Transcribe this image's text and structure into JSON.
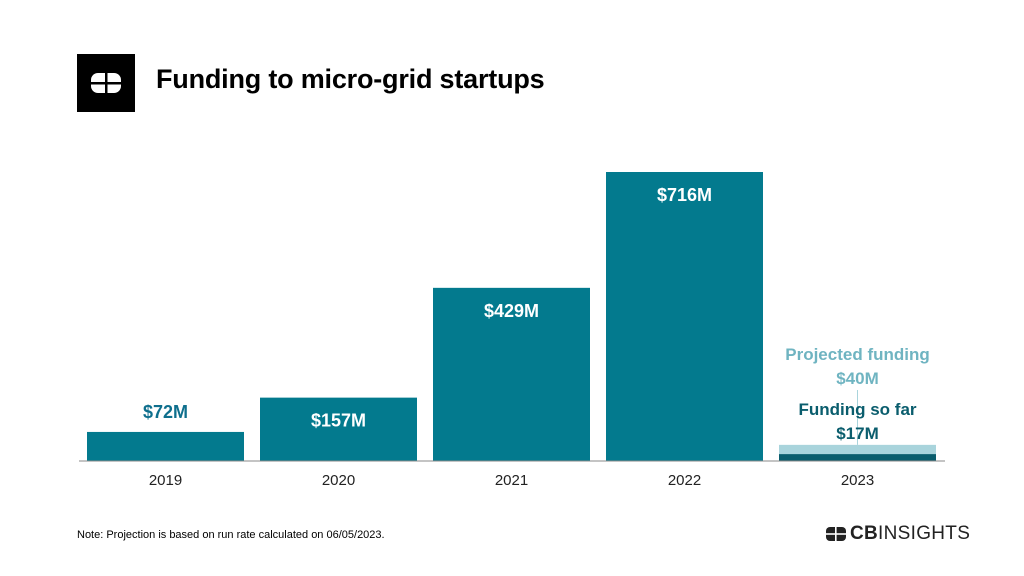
{
  "header": {
    "title": "Funding to micro-grid startups"
  },
  "chart_data": {
    "type": "bar",
    "title": "Funding to micro-grid startups",
    "xlabel": "",
    "ylabel": "",
    "categories": [
      "2019",
      "2020",
      "2021",
      "2022",
      "2023"
    ],
    "values": [
      72,
      157,
      429,
      716,
      17
    ],
    "value_labels": [
      "$72M",
      "$157M",
      "$429M",
      "$716M",
      "$17M"
    ],
    "unit": "$M",
    "ylim": [
      0,
      716
    ],
    "grid": false,
    "projection": {
      "category": "2023",
      "projected_label": "Projected funding",
      "projected_value": 40,
      "projected_value_label": "$40M",
      "so_far_label": "Funding so far",
      "so_far_value": 17,
      "so_far_value_label": "$17M"
    },
    "colors": {
      "bar": "#037a8e",
      "projected": "#a9d4dc",
      "projected_text": "#6fb4c1",
      "so_far": "#0a5d6d",
      "label_outside": "#0e6f8d",
      "label_inside": "#ffffff",
      "axis": "#888888"
    }
  },
  "footer": {
    "note": "Note: Projection is based on run rate calculated on 06/05/2023.",
    "brand_bold": "CB",
    "brand_light": "INSIGHTS"
  },
  "icons": {
    "logo": "cb-insights-logo-icon",
    "brand": "cb-insights-brand-icon"
  }
}
